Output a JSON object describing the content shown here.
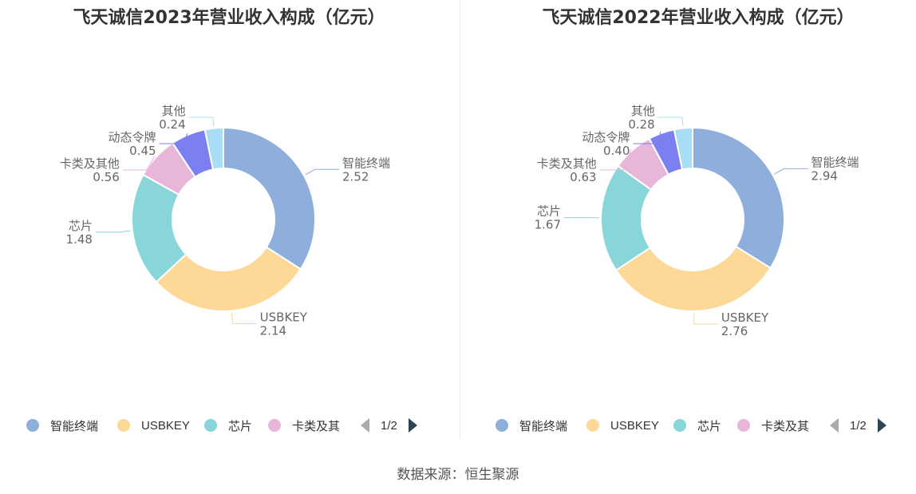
{
  "source_text": "数据来源：恒生聚源",
  "pager": {
    "text": "1/2"
  },
  "colors": [
    "#8eaedb",
    "#fdd897",
    "#88d5da",
    "#e7b6d8",
    "#7b7ff0",
    "#a9dcf5"
  ],
  "chart_data": [
    {
      "type": "pie",
      "title": "飞天诚信2023年营业收入构成（亿元）",
      "categories": [
        "智能终端",
        "USBKEY",
        "芯片",
        "卡类及其他",
        "动态令牌",
        "其他"
      ],
      "values": [
        2.52,
        2.14,
        1.48,
        0.56,
        0.45,
        0.24
      ],
      "value_labels": [
        "2.52",
        "2.14",
        "1.48",
        "0.56",
        "0.45",
        "0.24"
      ],
      "legend": {
        "position": "bottom",
        "visible_items": [
          "智能终端",
          "USBKEY",
          "芯片",
          "卡类及其"
        ]
      }
    },
    {
      "type": "pie",
      "title": "飞天诚信2022年营业收入构成（亿元）",
      "categories": [
        "智能终端",
        "USBKEY",
        "芯片",
        "卡类及其他",
        "动态令牌",
        "其他"
      ],
      "values": [
        2.94,
        2.76,
        1.67,
        0.63,
        0.4,
        0.28
      ],
      "value_labels": [
        "2.94",
        "2.76",
        "1.67",
        "0.63",
        "0.40",
        "0.28"
      ],
      "legend": {
        "position": "bottom",
        "visible_items": [
          "智能终端",
          "USBKEY",
          "芯片",
          "卡类及其"
        ]
      }
    }
  ]
}
